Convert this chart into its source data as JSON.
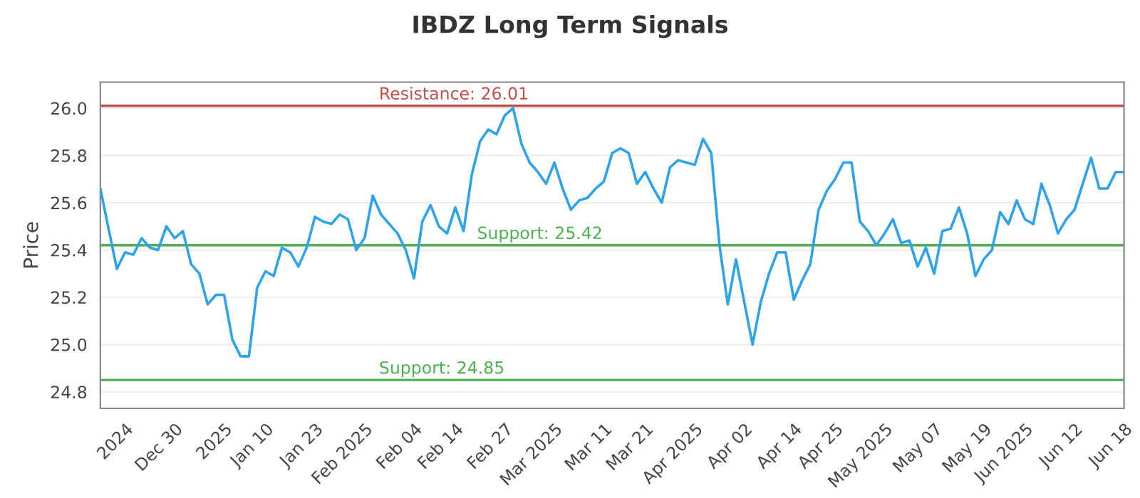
{
  "chart_data": {
    "type": "line",
    "title": "IBDZ Long Term Signals",
    "ylabel": "Price",
    "categories": [
      null,
      null,
      null,
      "2024",
      null,
      null,
      null,
      null,
      null,
      "Dec 30",
      null,
      null,
      null,
      null,
      null,
      "2025",
      null,
      null,
      null,
      null,
      "Jan 10",
      null,
      null,
      null,
      null,
      null,
      "Jan 23",
      null,
      null,
      null,
      null,
      null,
      "Feb 2025",
      null,
      null,
      null,
      null,
      null,
      "Feb 04",
      null,
      null,
      null,
      null,
      "Feb 14",
      null,
      null,
      null,
      null,
      null,
      "Feb 27",
      null,
      null,
      null,
      null,
      null,
      "Mar 2025",
      null,
      null,
      null,
      null,
      null,
      "Mar 11",
      null,
      null,
      null,
      null,
      "Mar 21",
      null,
      null,
      null,
      null,
      null,
      "Apr 2025",
      null,
      null,
      null,
      null,
      null,
      "Apr 02",
      null,
      null,
      null,
      null,
      null,
      "Apr 14",
      null,
      null,
      null,
      null,
      "Apr 25",
      null,
      null,
      null,
      null,
      null,
      "May 2025",
      null,
      null,
      null,
      null,
      null,
      "May 07",
      null,
      null,
      null,
      null,
      null,
      "May 19",
      null,
      null,
      null,
      null,
      "Jun 2025",
      null,
      null,
      null,
      null,
      null,
      "Jun 12",
      null,
      null,
      null,
      null,
      null,
      "Jun 18"
    ],
    "series": [
      {
        "color": "#2ea3e8",
        "values": [
          25.66,
          25.49,
          25.32,
          25.39,
          25.38,
          25.45,
          25.41,
          25.4,
          25.5,
          25.45,
          25.48,
          25.34,
          25.3,
          25.17,
          25.21,
          25.21,
          25.02,
          24.95,
          24.95,
          25.24,
          25.31,
          25.29,
          25.41,
          25.39,
          25.33,
          25.41,
          25.54,
          25.52,
          25.51,
          25.55,
          25.53,
          25.4,
          25.45,
          25.63,
          25.55,
          25.51,
          25.47,
          25.4,
          25.28,
          25.52,
          25.59,
          25.5,
          25.47,
          25.58,
          25.48,
          25.72,
          25.86,
          25.91,
          25.89,
          25.97,
          26.0,
          25.85,
          25.77,
          25.73,
          25.68,
          25.77,
          25.66,
          25.57,
          25.61,
          25.62,
          25.66,
          25.69,
          25.81,
          25.83,
          25.81,
          25.68,
          25.73,
          25.66,
          25.6,
          25.75,
          25.78,
          25.77,
          25.76,
          25.87,
          25.81,
          25.42,
          25.17,
          25.36,
          25.18,
          25.0,
          25.18,
          25.3,
          25.39,
          25.39,
          25.19,
          25.27,
          25.34,
          25.57,
          25.65,
          25.7,
          25.77,
          25.77,
          25.52,
          25.48,
          25.42,
          25.47,
          25.53,
          25.43,
          25.44,
          25.33,
          25.41,
          25.3,
          25.48,
          25.49,
          25.58,
          25.47,
          25.29,
          25.36,
          25.4,
          25.56,
          25.51,
          25.61,
          25.53,
          25.51,
          25.68,
          25.59,
          25.47,
          25.53,
          25.57,
          25.68,
          25.79,
          25.66,
          25.66,
          25.73,
          25.73
        ]
      }
    ],
    "ylim": [
      24.73,
      26.11
    ],
    "yticks": [
      {
        "value": 24.8,
        "label": "24.8"
      },
      {
        "value": 25.0,
        "label": "25.0"
      },
      {
        "value": 25.2,
        "label": "25.2"
      },
      {
        "value": 25.4,
        "label": "25.4"
      },
      {
        "value": 25.6,
        "label": "25.6"
      },
      {
        "value": 25.8,
        "label": "25.8"
      },
      {
        "value": 26.0,
        "label": "26.0"
      }
    ],
    "ref_lines": [
      {
        "axis": "y",
        "value": 26.01,
        "label": "Resistance: 26.01",
        "color": "#c0504d"
      },
      {
        "axis": "y",
        "value": 25.42,
        "label": "Support: 25.42",
        "color": "#4caf50"
      },
      {
        "axis": "y",
        "value": 24.85,
        "label": "Support: 24.85",
        "color": "#4caf50"
      }
    ],
    "grid": "y",
    "marker": "none",
    "line_style": "solid",
    "legend": false
  }
}
